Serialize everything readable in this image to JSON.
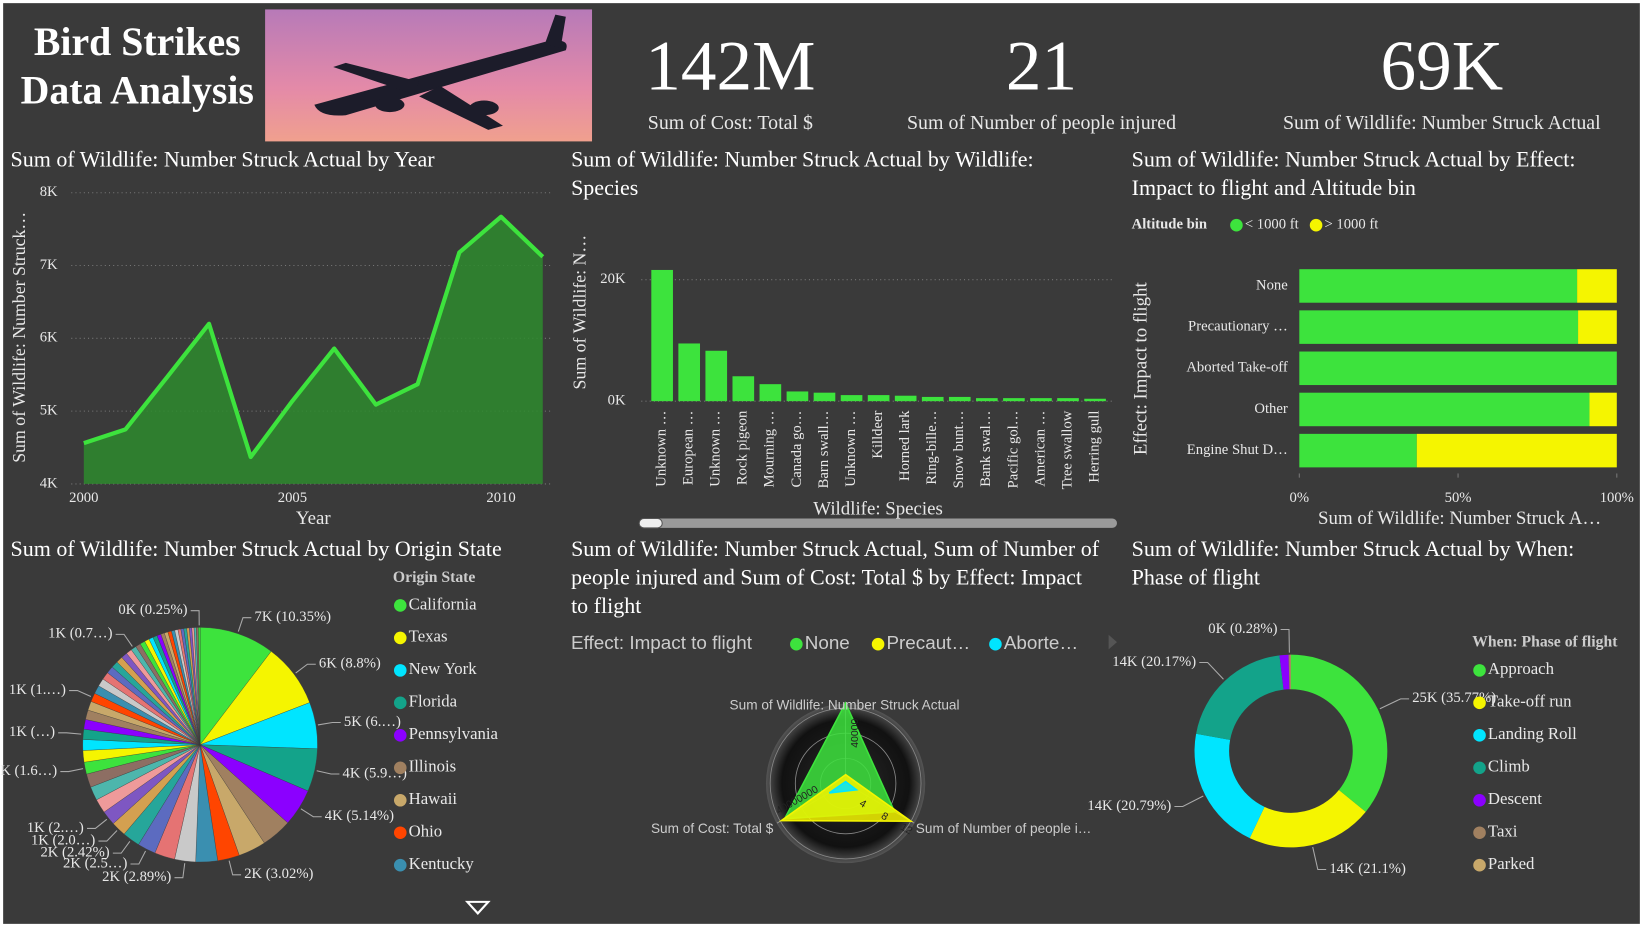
{
  "header": {
    "title_lines": [
      "Bird Strikes",
      "Data Analysis"
    ]
  },
  "kpis": [
    {
      "value": "142M",
      "label": "Sum of Cost: Total $"
    },
    {
      "value": "21",
      "label": "Sum of Number of people injured"
    },
    {
      "value": "69K",
      "label": "Sum of Wildlife: Number Struck Actual"
    }
  ],
  "chart_data": [
    {
      "type": "area",
      "title": "Sum of Wildlife: Number Struck Actual by Year",
      "x": [
        2000,
        2001,
        2002,
        2003,
        2004,
        2005,
        2006,
        2007,
        2008,
        2009,
        2010,
        2011
      ],
      "values": [
        4560,
        4750,
        5470,
        6200,
        4370,
        5140,
        5860,
        5090,
        5370,
        7180,
        7670,
        7120
      ],
      "xlim": [
        2000,
        2011
      ],
      "xticks": [
        2000,
        2005,
        2010
      ],
      "ylim": [
        4000,
        8000
      ],
      "yticks": [
        {
          "value": 4000,
          "label": "4K"
        },
        {
          "value": 5000,
          "label": "5K"
        },
        {
          "value": 6000,
          "label": "6K"
        },
        {
          "value": 7000,
          "label": "7K"
        },
        {
          "value": 8000,
          "label": "8K"
        }
      ],
      "xlabel": "Year",
      "ylabel": "Sum of Wildlife: Number Struck…",
      "color": "#3de33d",
      "fill": "#2e8b2e",
      "grid": true
    },
    {
      "type": "bar",
      "title": "Sum of Wildlife: Number Struck Actual by Wildlife: Species",
      "categories": [
        "Unknown …",
        "European …",
        "Unknown …",
        "Rock pigeon",
        "Mourning …",
        "Canada go…",
        "Barn swall…",
        "Unknown …",
        "Killdeer",
        "Horned lark",
        "Ring-bille…",
        "Snow bunt…",
        "Bank swal…",
        "Pacific gol…",
        "American …",
        "Tree swallow",
        "Herring gull"
      ],
      "values": [
        21600,
        9500,
        8300,
        4100,
        2800,
        1600,
        1400,
        1000,
        1000,
        900,
        700,
        700,
        500,
        500,
        500,
        500,
        400
      ],
      "ylim": [
        0,
        25000
      ],
      "yticks": [
        {
          "value": 0,
          "label": "0K"
        },
        {
          "value": 20000,
          "label": "20K"
        }
      ],
      "xlabel": "Wildlife: Species",
      "ylabel": "Sum of Wildlife: N…",
      "color": "#3de33d",
      "grid": true
    },
    {
      "type": "hbar",
      "title": "Sum of Wildlife: Number Struck Actual by Effect: Impact to flight and Altitude bin",
      "legend_title": "Altitude bin",
      "categories": [
        "None",
        "Precautionary …",
        "Aborted Take-off",
        "Other",
        "Engine Shut D…"
      ],
      "series": [
        {
          "name": "< 1000 ft",
          "color": "#3de33d",
          "values": [
            87.5,
            87.8,
            100,
            91.4,
            37
          ]
        },
        {
          "name": "> 1000 ft",
          "color": "#f5f500",
          "values": [
            12.5,
            12.2,
            0,
            8.6,
            63
          ]
        }
      ],
      "xlim": [
        0,
        100
      ],
      "xticks": [
        {
          "value": 0,
          "label": "0%"
        },
        {
          "value": 50,
          "label": "50%"
        },
        {
          "value": 100,
          "label": "100%"
        }
      ],
      "xlabel": "Sum of Wildlife: Number Struck A…",
      "ylabel": "Effect: Impact to flight"
    },
    {
      "type": "pie",
      "title": "Sum of Wildlife: Number Struck Actual by Origin State",
      "legend_title": "Origin State",
      "categories": [
        "California",
        "Texas",
        "New York",
        "Florida",
        "Pennsylvania",
        "Illinois",
        "Hawaii",
        "Ohio",
        "Kentucky",
        null,
        null,
        null,
        null,
        null,
        null,
        null,
        null,
        null,
        null,
        null,
        null,
        null,
        null,
        null,
        null,
        null,
        null,
        null,
        null,
        null,
        null,
        null,
        null,
        null,
        null,
        null,
        null,
        null,
        null,
        null,
        null,
        null,
        null,
        null,
        null,
        null,
        null,
        null,
        null,
        null,
        null,
        null,
        null,
        null,
        null
      ],
      "values": [
        10.35,
        8.8,
        6.4,
        5.9,
        5.14,
        4.2,
        3.8,
        3.02,
        3.0,
        2.89,
        2.8,
        2.5,
        2.42,
        2.05,
        2.0,
        1.95,
        1.9,
        1.85,
        1.65,
        1.6,
        1.5,
        1.4,
        1.35,
        1.3,
        1.25,
        1.2,
        1.15,
        1.1,
        1.05,
        1.0,
        0.95,
        0.9,
        0.85,
        0.8,
        0.75,
        0.7,
        0.7,
        0.65,
        0.6,
        0.6,
        0.55,
        0.5,
        0.5,
        0.5,
        0.45,
        0.45,
        0.4,
        0.4,
        0.4,
        0.35,
        0.35,
        0.3,
        0.3,
        0.28,
        0.25
      ],
      "value_labels": [
        "7K (10.35%)",
        "6K (8.8%)",
        "5K (6.…)",
        "4K (5.9…)",
        "4K (5.14%)",
        null,
        null,
        "2K (3.02%)",
        null,
        "2K (2.89%)",
        null,
        "2K (2.5…)",
        "2K (2.42%)",
        "1K (2.0…)",
        "1K (2.…)",
        null,
        null,
        null,
        "1K (1.6…)",
        null,
        null,
        "1K (…)",
        null,
        null,
        null,
        "1K (1.…)",
        null,
        null,
        null,
        null,
        null,
        null,
        null,
        null,
        "1K (0.7…)",
        null,
        null,
        null,
        null,
        null,
        null,
        null,
        null,
        null,
        null,
        null,
        null,
        null,
        null,
        null,
        null,
        null,
        null,
        null,
        "0K (0.25%)"
      ],
      "colors": [
        "#3de33d",
        "#f5f500",
        "#00e5ff",
        "#13a38a",
        "#8b00ff",
        "#a08060",
        "#c8a86a",
        "#ff4500",
        "#3a8fb0",
        "#c9c9c9",
        "#e57373",
        "#5c6bc0",
        "#26a69a",
        "#d4a050",
        "#7e57c2",
        "#ef9a9a",
        "#4db6ac",
        "#8d6e63"
      ]
    },
    {
      "type": "radar",
      "title": "Sum of Wildlife: Number Struck Actual, Sum of Number of people injured and Sum of Cost: Total $ by Effect: Impact to flight",
      "legend_title": "Effect: Impact to flight",
      "axes": [
        {
          "name": "Sum of Wildlife: Number Struck Actual",
          "lim": [
            0,
            60000
          ],
          "ticks": [
            40000
          ]
        },
        {
          "name": "Sum of Number of people i…",
          "lim": [
            0,
            12
          ],
          "ticks": [
            4,
            8,
            12
          ]
        },
        {
          "name": "Sum of Cost: Total $",
          "lim": [
            0,
            60000000
          ],
          "ticks": [
            40000000
          ]
        }
      ],
      "series": [
        {
          "name": "None",
          "color": "#3de33d",
          "values": [
            64000,
            9,
            56000000
          ]
        },
        {
          "name": "Precaut…",
          "color": "#f5f500",
          "values": [
            7000,
            12,
            59000000
          ]
        },
        {
          "name": "Aborte…",
          "color": "#00e5ff",
          "values": [
            1500,
            2,
            15000000
          ]
        }
      ]
    },
    {
      "type": "donut",
      "title": "Sum of Wildlife: Number Struck Actual by When: Phase of flight",
      "legend_title": "When: Phase of flight",
      "categories": [
        "Approach",
        "Take-off run",
        "Landing Roll",
        "Climb",
        "Descent",
        "Taxi",
        "Parked"
      ],
      "values": [
        35.77,
        21.1,
        20.79,
        20.17,
        1.5,
        0.28,
        0.11
      ],
      "value_labels": [
        "25K (35.77%)",
        "14K (21.1%)",
        "14K (20.79%)",
        "14K (20.17%)",
        null,
        "0K (0.28%)",
        null
      ],
      "colors": [
        "#3de33d",
        "#f5f500",
        "#00e5ff",
        "#13a38a",
        "#8b00ff",
        "#a08060",
        "#c8a86a"
      ]
    }
  ]
}
